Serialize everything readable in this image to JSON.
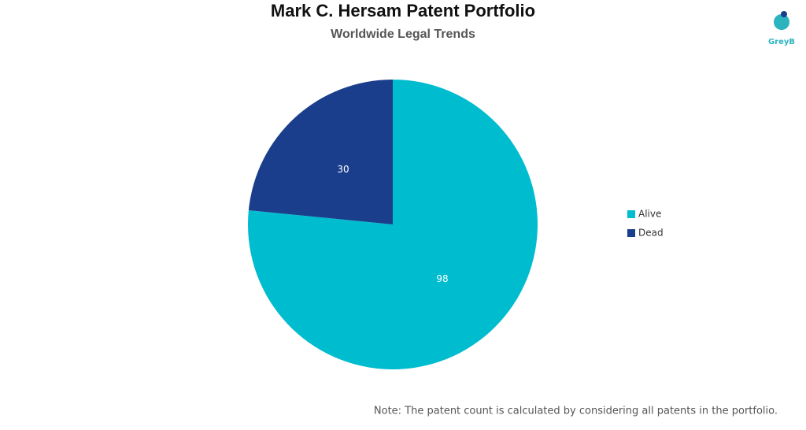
{
  "chart_data": {
    "type": "pie",
    "title": "Mark C. Hersam Patent Portfolio",
    "subtitle": "Worldwide Legal Trends",
    "categories": [
      "Alive",
      "Dead"
    ],
    "values": [
      98,
      30
    ],
    "colors": [
      "#00bccf",
      "#1a3e8c"
    ],
    "legend": "right",
    "note": "Note: The patent count is calculated by considering all patents in the portfolio.",
    "logo": "GreyB"
  }
}
